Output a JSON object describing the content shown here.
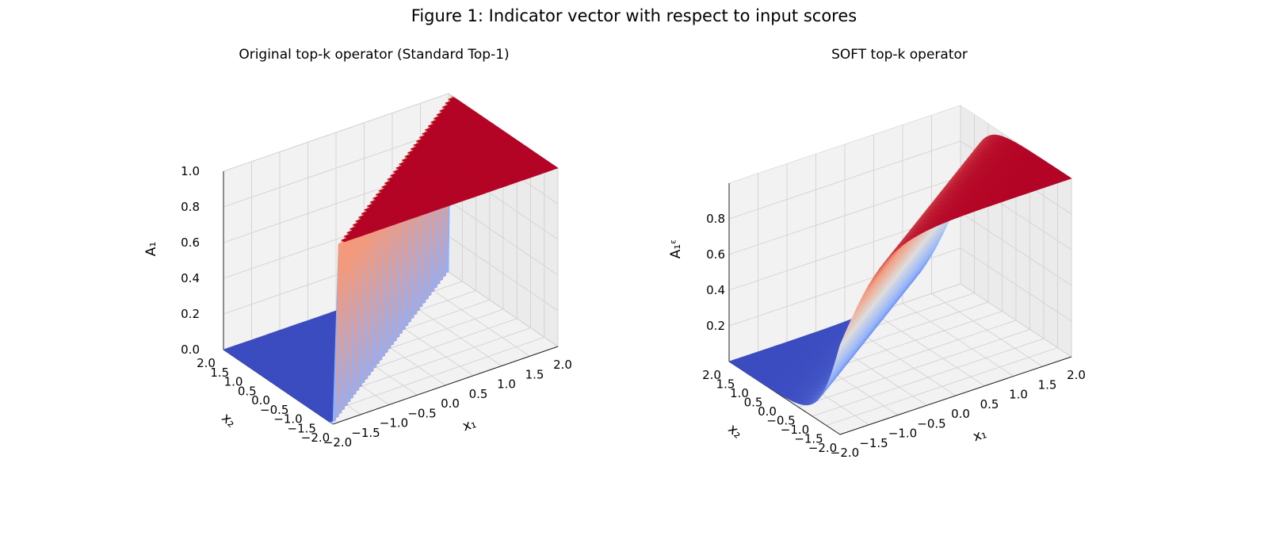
{
  "figure": {
    "title": "Figure 1: Indicator vector with respect to input scores"
  },
  "chart_data": [
    {
      "type": "surface",
      "title": "Original top-k operator (Standard Top-1)",
      "xlabel": "x₁",
      "ylabel": "x₂",
      "zlabel": "A₁",
      "xlim": [
        -2.0,
        2.0
      ],
      "ylim": [
        -2.0,
        2.0
      ],
      "zlim": [
        0.0,
        1.0
      ],
      "x_ticks": [
        "−2.0",
        "−1.5",
        "−1.0",
        "−0.5",
        "0.0",
        "0.5",
        "1.0",
        "1.5",
        "2.0"
      ],
      "y_ticks": [
        "−2.0",
        "−1.5",
        "−1.0",
        "−0.5",
        "0.0",
        "0.5",
        "1.0",
        "1.5",
        "2.0"
      ],
      "z_ticks": [
        "0.0",
        "0.2",
        "0.4",
        "0.6",
        "0.8",
        "1.0"
      ],
      "function": "A1 = 1 if x1 > x2 else 0 (hard step)",
      "colormap": "coolwarm",
      "low_color": "#3b4cc0",
      "high_color": "#b40426",
      "grid": true
    },
    {
      "type": "surface",
      "title": "SOFT top-k operator",
      "xlabel": "x₁",
      "ylabel": "x₂",
      "zlabel": "A₁ᵋ",
      "xlim": [
        -2.0,
        2.0
      ],
      "ylim": [
        -2.0,
        2.0
      ],
      "zlim": [
        0.0,
        1.0
      ],
      "x_ticks": [
        "−2.0",
        "−1.5",
        "−1.0",
        "−0.5",
        "0.0",
        "0.5",
        "1.0",
        "1.5",
        "2.0"
      ],
      "y_ticks": [
        "−2.0",
        "−1.5",
        "−1.0",
        "−0.5",
        "0.0",
        "0.5",
        "1.0",
        "1.5",
        "2.0"
      ],
      "z_ticks": [
        "0.2",
        "0.4",
        "0.6",
        "0.8"
      ],
      "function": "smooth sigmoid transition in (x1 - x2)",
      "colormap": "coolwarm",
      "low_color": "#3b4cc0",
      "high_color": "#b40426",
      "grid": true
    }
  ]
}
